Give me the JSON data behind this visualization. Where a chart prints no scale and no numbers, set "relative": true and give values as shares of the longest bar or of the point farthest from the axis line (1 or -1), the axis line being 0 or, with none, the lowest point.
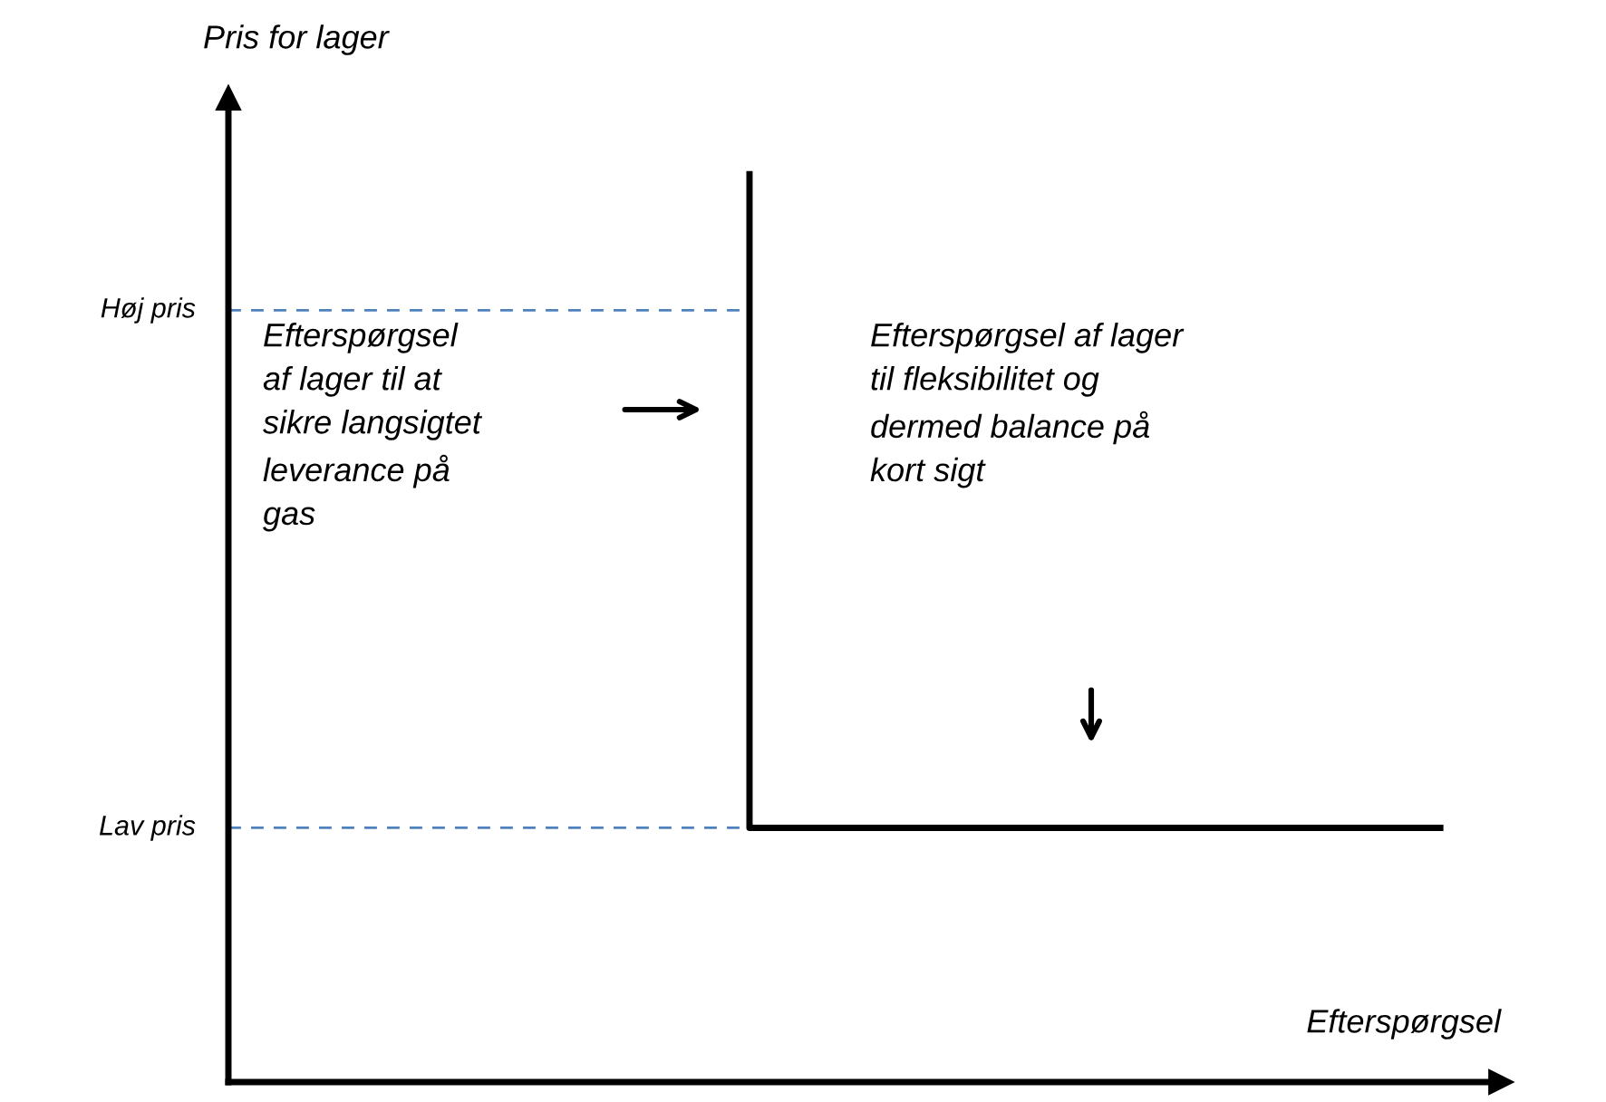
{
  "chart_data": {
    "type": "step",
    "relative": true,
    "xlabel": "Efterspørgsel",
    "ylabel": "Pris for lager",
    "categories": [
      null,
      null
    ],
    "series": [
      {
        "color": "#000000",
        "values": [
          1,
          0.28
        ]
      }
    ],
    "ref_lines": [
      {
        "axis": "y",
        "value": 0.85,
        "label": "Høj pris",
        "color": "#4f81bd",
        "line_style": "dashed"
      },
      {
        "axis": "y",
        "value": 0.28,
        "label": "Lav pris",
        "color": "#4f81bd",
        "line_style": "dashed"
      }
    ],
    "annotations": [
      "Efterspørgsel\naf lager til at\nsikre langsigtet\nleverance på\ngas",
      "Efterspørgsel af lager\ntil fleksibilitet og\ndermed balance på\nkort sigt"
    ],
    "legend": false,
    "marker": "none",
    "line_style": "solid"
  }
}
